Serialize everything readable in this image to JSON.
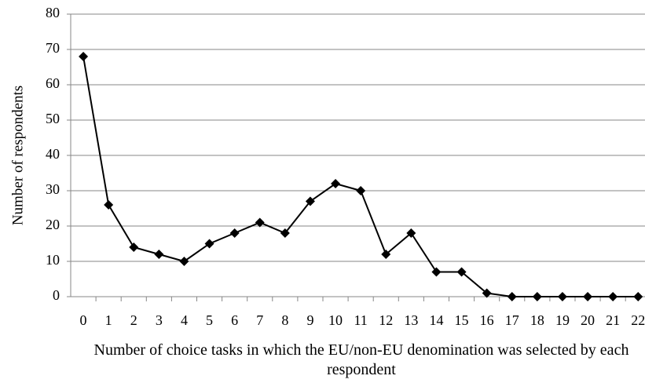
{
  "chart_data": {
    "type": "line",
    "x_label": "Number of choice tasks in which the EU/non-EU denomination was selected by each respondent",
    "y_label": "Number of respondents",
    "categories": [
      "0",
      "1",
      "2",
      "3",
      "4",
      "5",
      "6",
      "7",
      "8",
      "9",
      "10",
      "11",
      "12",
      "13",
      "14",
      "15",
      "16",
      "17",
      "18",
      "19",
      "20",
      "21",
      "22"
    ],
    "series": [
      {
        "color": "#000000",
        "values": [
          68,
          26,
          14,
          12,
          10,
          15,
          18,
          21,
          18,
          27,
          32,
          30,
          12,
          18,
          7,
          7,
          1,
          0,
          0,
          0,
          0,
          0,
          0
        ]
      }
    ],
    "ylim": [
      0,
      80
    ],
    "yticks": [
      0,
      10,
      20,
      30,
      40,
      50,
      60,
      70,
      80
    ],
    "grid": true
  }
}
